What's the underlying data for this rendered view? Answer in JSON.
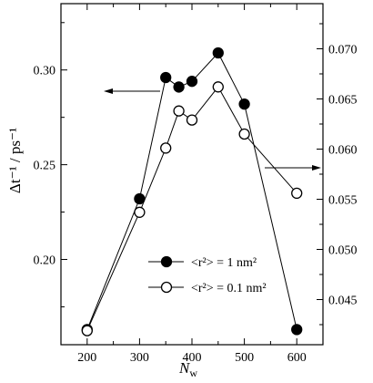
{
  "chart_data": {
    "type": "line",
    "xlabel": "N",
    "xlabel_sub": "w",
    "ylabel_left": "Δt⁻¹ / ps⁻¹",
    "ylabel_right": "",
    "x_ticks": [
      200,
      300,
      400,
      500,
      600
    ],
    "y_left_ticks": [
      "0.20",
      "0.25",
      "0.30"
    ],
    "y_right_ticks": [
      "0.045",
      "0.050",
      "0.055",
      "0.060",
      "0.065",
      "0.070"
    ],
    "xlim": [
      150,
      650
    ],
    "ylim_left": [
      0.155,
      0.335
    ],
    "ylim_right": [
      0.0405,
      0.0745
    ],
    "series": [
      {
        "name": "<r²> = 1 nm²",
        "axis": "left",
        "marker": "filled-circle",
        "x": [
          200,
          300,
          350,
          375,
          400,
          450,
          500,
          600
        ],
        "y": [
          0.163,
          0.232,
          0.296,
          0.291,
          0.294,
          0.309,
          0.282,
          0.163
        ]
      },
      {
        "name": "<r²> = 0.1 nm²",
        "axis": "right",
        "marker": "open-circle",
        "x": [
          200,
          300,
          350,
          375,
          400,
          450,
          500,
          600
        ],
        "y": [
          0.0419,
          0.0537,
          0.0601,
          0.0638,
          0.0629,
          0.0662,
          0.0615,
          0.0556
        ]
      }
    ],
    "annotations": [
      "arrow-left-pointing-to-left-axis",
      "arrow-right-pointing-to-right-axis"
    ],
    "legend_position": "bottom-center",
    "grid": false
  }
}
